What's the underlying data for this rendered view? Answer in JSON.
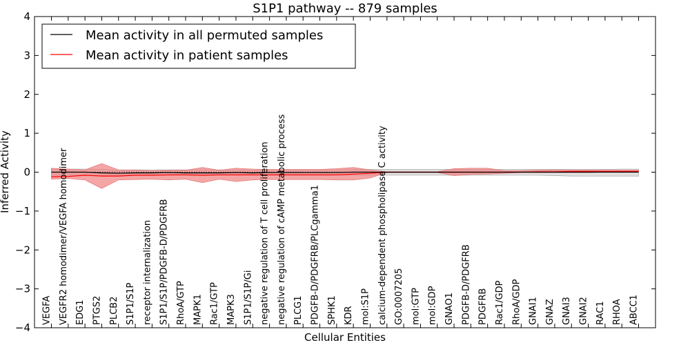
{
  "chart_data": {
    "type": "line",
    "title": "S1P1 pathway -- 879 samples",
    "xlabel": "Cellular Entities",
    "ylabel": "Inferred Activity",
    "ylim": [
      -4,
      4
    ],
    "yticks": [
      "4",
      "3",
      "2",
      "1",
      "0",
      "−1",
      "−2",
      "−3",
      "−4"
    ],
    "ytick_values": [
      4,
      3,
      2,
      1,
      0,
      -1,
      -2,
      -3,
      -4
    ],
    "grid": false,
    "legend": {
      "placement": "top-left",
      "entries": [
        "Mean activity in all permuted samples",
        "Mean activity in patient samples"
      ]
    },
    "colors": {
      "permuted_line": "#000000",
      "patient_line": "#ff0000",
      "patient_band": "#f08080",
      "permuted_band": "#bbbbbb"
    },
    "categories": [
      "VEGFA",
      "VEGFR2 homodimer/VEGFA homodimer",
      "EDG1",
      "PTGS2",
      "PLCB2",
      "S1P1/S1P",
      "receptor internalization",
      "S1P1/S1P/PDGFB-D/PDGFRB",
      "RhoA/GTP",
      "MAPK1",
      "Rac1/GTP",
      "MAPK3",
      "S1P1/S1P/Gi",
      "negative regulation of T cell proliferation",
      "negative regulation of cAMP metabolic process",
      "PLCG1",
      "PDGFB-D/PDGFRB/PLCgamma1",
      "SPHK1",
      "KDR",
      "mol:S1P",
      "calcium-dependent phospholipase C activity",
      "GO:0007205",
      "mol:GTP",
      "mol:GDP",
      "GNAO1",
      "PDGFB-D/PDGFRB",
      "PDGFRB",
      "Rac1/GDP",
      "RhoA/GDP",
      "GNAI1",
      "GNAZ",
      "GNAI3",
      "GNAI2",
      "RAC1",
      "RHOA",
      "ABCC1"
    ],
    "series": [
      {
        "name": "Mean activity in all permuted samples",
        "values": [
          0.0,
          0.0,
          0.0,
          -0.02,
          -0.03,
          -0.02,
          -0.02,
          -0.01,
          -0.02,
          -0.02,
          -0.02,
          -0.01,
          -0.02,
          -0.01,
          -0.01,
          -0.01,
          -0.01,
          -0.01,
          0.0,
          0.0,
          0.0,
          0.0,
          0.0,
          0.0,
          0.0,
          0.0,
          0.0,
          0.0,
          0.0,
          0.0,
          0.0,
          0.0,
          0.0,
          0.0,
          0.0,
          0.0
        ],
        "band_upper": [
          0.08,
          0.08,
          0.08,
          0.07,
          0.06,
          0.06,
          0.06,
          0.06,
          0.06,
          0.06,
          0.06,
          0.06,
          0.06,
          0.06,
          0.06,
          0.06,
          0.06,
          0.06,
          0.07,
          0.07,
          0.07,
          0.07,
          0.07,
          0.07,
          0.07,
          0.07,
          0.07,
          0.07,
          0.07,
          0.07,
          0.07,
          0.07,
          0.07,
          0.07,
          0.08,
          0.08
        ],
        "band_lower": [
          -0.08,
          -0.08,
          -0.08,
          -0.08,
          -0.08,
          -0.08,
          -0.08,
          -0.08,
          -0.08,
          -0.08,
          -0.08,
          -0.08,
          -0.08,
          -0.08,
          -0.08,
          -0.08,
          -0.08,
          -0.08,
          -0.08,
          -0.08,
          -0.08,
          -0.08,
          -0.08,
          -0.08,
          -0.08,
          -0.08,
          -0.08,
          -0.08,
          -0.08,
          -0.08,
          -0.09,
          -0.1,
          -0.1,
          -0.1,
          -0.1,
          -0.1
        ]
      },
      {
        "name": "Mean activity in patient samples",
        "values": [
          -0.12,
          -0.11,
          -0.08,
          -0.1,
          -0.1,
          -0.08,
          -0.08,
          -0.07,
          -0.07,
          -0.08,
          -0.07,
          -0.07,
          -0.07,
          -0.07,
          -0.07,
          -0.07,
          -0.07,
          -0.07,
          -0.05,
          -0.03,
          0.0,
          0.0,
          0.0,
          0.0,
          0.0,
          0.0,
          0.0,
          0.0,
          0.0,
          0.01,
          0.01,
          0.02,
          0.02,
          0.02,
          0.02,
          0.02
        ],
        "band_upper": [
          0.1,
          0.08,
          0.06,
          0.22,
          0.06,
          0.05,
          0.04,
          0.05,
          0.05,
          0.12,
          0.05,
          0.1,
          0.08,
          0.07,
          0.07,
          0.07,
          0.07,
          0.09,
          0.12,
          0.06,
          0.01,
          0.01,
          0.01,
          0.01,
          0.09,
          0.1,
          0.1,
          0.04,
          0.04,
          0.05,
          0.06,
          0.05,
          0.05,
          0.05,
          0.05,
          0.05
        ],
        "band_lower": [
          -0.18,
          -0.16,
          -0.2,
          -0.42,
          -0.2,
          -0.19,
          -0.18,
          -0.2,
          -0.18,
          -0.27,
          -0.18,
          -0.24,
          -0.2,
          -0.19,
          -0.19,
          -0.19,
          -0.19,
          -0.2,
          -0.2,
          -0.15,
          -0.01,
          -0.01,
          -0.01,
          -0.01,
          -0.09,
          -0.06,
          -0.05,
          -0.03,
          -0.01,
          -0.01,
          -0.01,
          -0.01,
          -0.01,
          0.0,
          0.0,
          0.0
        ]
      }
    ]
  }
}
